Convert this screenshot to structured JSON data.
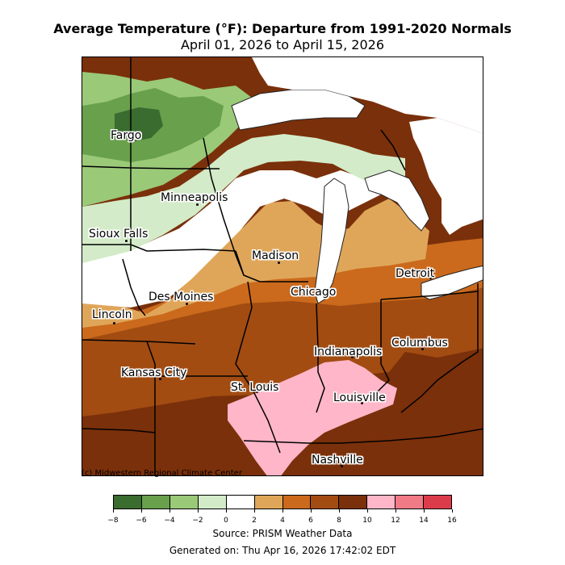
{
  "title": "Average Temperature (°F): Departure from 1991-2020 Normals",
  "subtitle": "April 01, 2026 to April 15, 2026",
  "credit": "(c) Midwestern Regional Climate Center",
  "source": "Source: PRISM Weather Data",
  "generated": "Generated on: Thu Apr 16, 2026 17:42:02 EDT",
  "cities": [
    {
      "name": "Fargo"
    },
    {
      "name": "Minneapolis"
    },
    {
      "name": "Sioux Falls"
    },
    {
      "name": "Madison"
    },
    {
      "name": "Detroit"
    },
    {
      "name": "Des Moines"
    },
    {
      "name": "Chicago"
    },
    {
      "name": "Lincoln"
    },
    {
      "name": "Columbus"
    },
    {
      "name": "Indianapolis"
    },
    {
      "name": "Kansas City"
    },
    {
      "name": "St. Louis"
    },
    {
      "name": "Louisville"
    },
    {
      "name": "Nashville"
    }
  ],
  "legend": {
    "ticks": [
      "−8",
      "−6",
      "−4",
      "−2",
      "0",
      "2",
      "4",
      "6",
      "8",
      "10",
      "12",
      "14",
      "16"
    ],
    "colors": [
      "#3a6b2f",
      "#68a04c",
      "#9ac978",
      "#d3ebc8",
      "#ffffff",
      "#dfa65a",
      "#cb6a1c",
      "#a24c12",
      "#7a300a",
      "#ffb6c8",
      "#f07a86",
      "#dc3c4a"
    ]
  },
  "palette": {
    "dark_green": "#3a6b2f",
    "green": "#68a04c",
    "light_green": "#9ac978",
    "pale_green": "#d3ebc8",
    "tan": "#dfa65a",
    "orange": "#cb6a1c",
    "brown": "#a24c12",
    "dark_brown": "#7a300a",
    "pink": "#ffb6c8",
    "lake": "#ffffff"
  }
}
